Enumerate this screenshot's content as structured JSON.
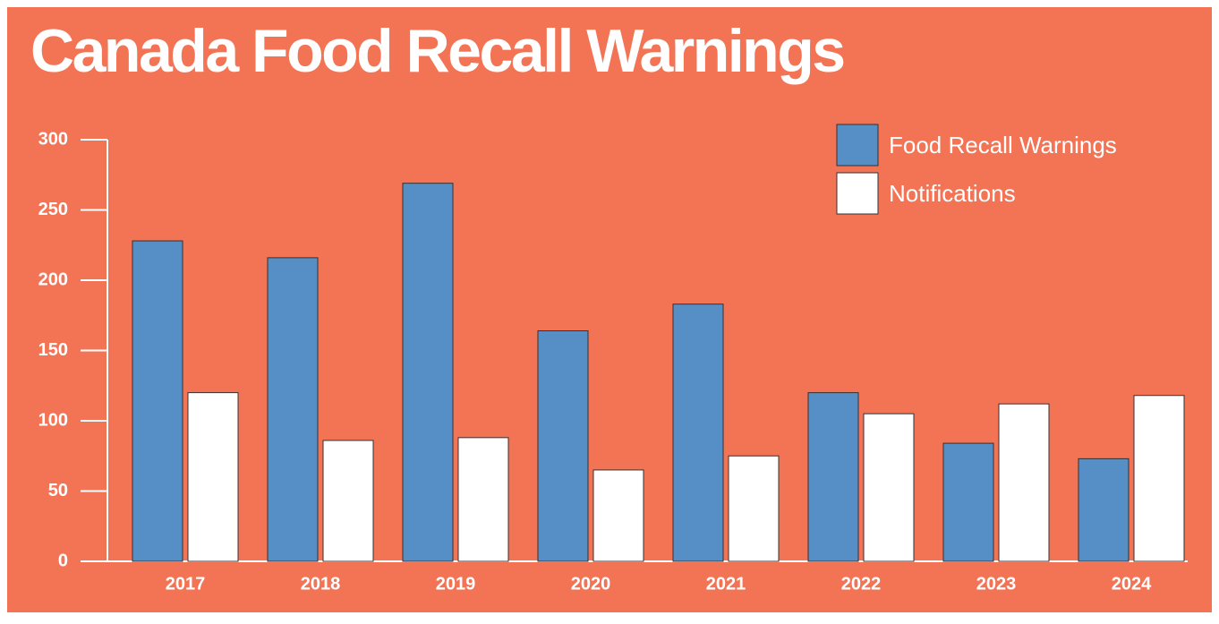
{
  "chart_data": {
    "type": "bar",
    "title": "Canada Food Recall Warnings",
    "categories": [
      "2017",
      "2018",
      "2019",
      "2020",
      "2021",
      "2022",
      "2023",
      "2024"
    ],
    "series": [
      {
        "name": "Food Recall Warnings",
        "color": "#568ec6",
        "values": [
          228,
          216,
          269,
          164,
          183,
          120,
          84,
          73
        ]
      },
      {
        "name": "Notifications",
        "color": "#ffffff",
        "values": [
          120,
          86,
          88,
          65,
          75,
          105,
          112,
          118
        ]
      }
    ],
    "ylim": [
      0,
      300
    ],
    "yticks": [
      0,
      50,
      100,
      150,
      200,
      250,
      300
    ],
    "legend": "upper right",
    "background": "#f37355"
  }
}
